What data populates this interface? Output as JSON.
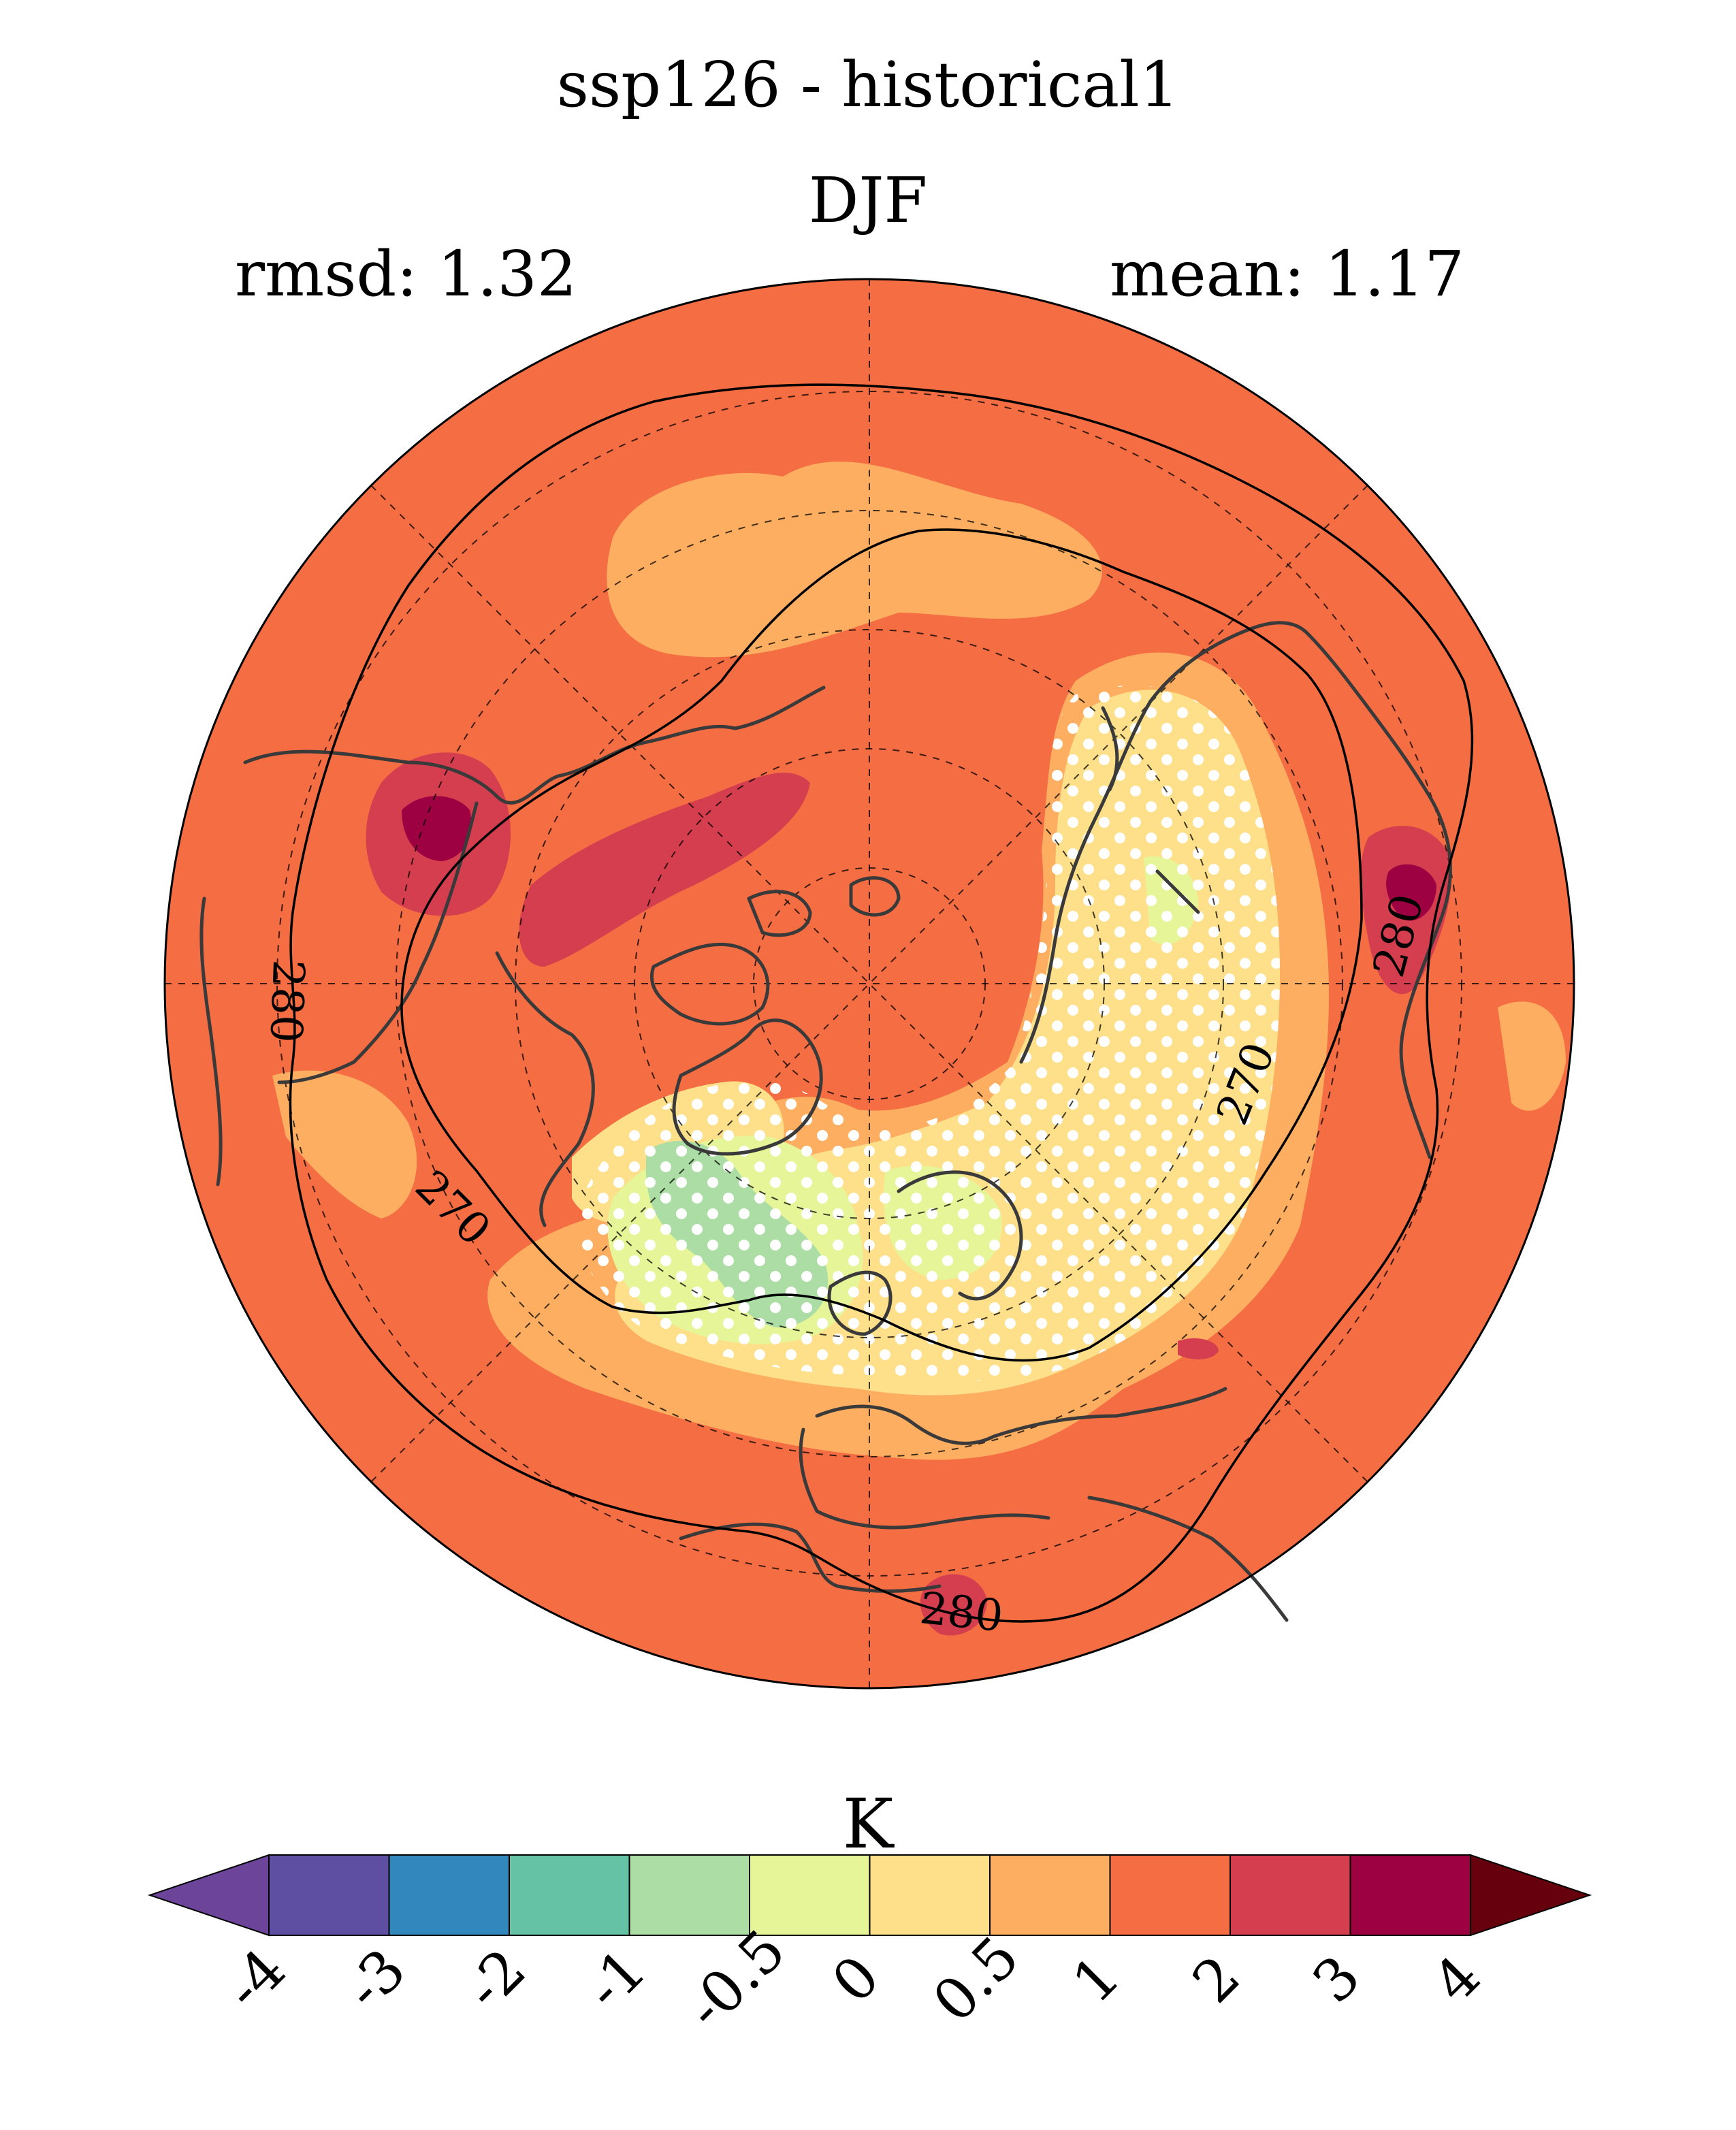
{
  "title": "ssp126 - historical1",
  "season": "DJF",
  "stats": {
    "rmsd": "rmsd: 1.32",
    "mean": "mean: 1.17"
  },
  "unit": "K",
  "contours": {
    "label_270": "270",
    "label_280": "280"
  },
  "colorbar": {
    "ticks": [
      "-4",
      "-3",
      "-2",
      "-1",
      "-0.5",
      "0",
      "0.5",
      "1",
      "2",
      "3",
      "4"
    ],
    "colors": [
      "#5e4fa2",
      "#3288bd",
      "#66c2a5",
      "#abdda4",
      "#e6f598",
      "#fee08b",
      "#fdae61",
      "#f46d43",
      "#d53e4f",
      "#9e0142"
    ],
    "under_color": "#6c449a",
    "over_color": "#67000d"
  },
  "map_colors": {
    "background": "#f46d43",
    "band_05_1": "#fdae61",
    "band_0_05": "#fee08b",
    "band_m05_0": "#e6f598",
    "band_m1_m05": "#abdda4",
    "band_2_3": "#d53e4f",
    "band_3_4": "#9e0142",
    "coast": "#3a3a3a",
    "stipple": "#ffffff"
  }
}
